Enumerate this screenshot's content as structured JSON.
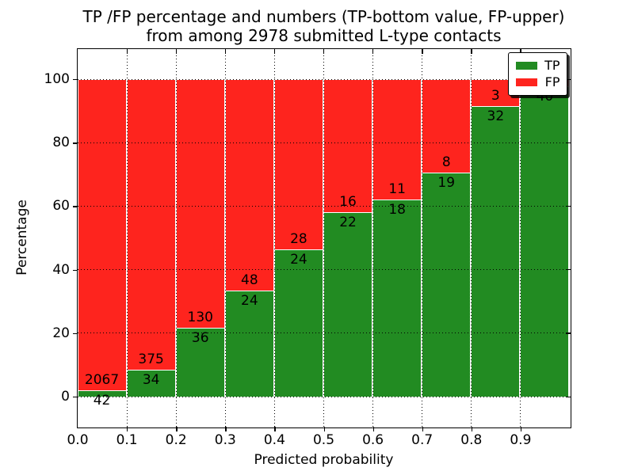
{
  "title": {
    "line1": "TP /FP percentage and numbers (TP-bottom value, FP-upper)",
    "line2": "from among 2978 submitted L-type contacts"
  },
  "axes": {
    "xlabel": "Predicted probability",
    "ylabel": "Percentage",
    "xtick_labels": [
      "0.0",
      "0.1",
      "0.2",
      "0.3",
      "0.4",
      "0.5",
      "0.6",
      "0.7",
      "0.8",
      "0.9"
    ],
    "ytick_labels": [
      "0",
      "20",
      "40",
      "60",
      "80",
      "100"
    ],
    "ytick_values": [
      0,
      20,
      40,
      60,
      80,
      100
    ]
  },
  "legend": {
    "position": "upper right",
    "entries": [
      {
        "label": "TP",
        "color": "#228b22"
      },
      {
        "label": "FP",
        "color": "#fe241e"
      }
    ]
  },
  "colors": {
    "tp": "#228b22",
    "fp": "#fe241e",
    "grid": "#000000",
    "background": "#ffffff"
  },
  "chart_data": {
    "type": "bar",
    "stacked": true,
    "normalized": "each bin scaled to 100%, segment heights are percent of bin total",
    "title": "TP /FP percentage and numbers (TP-bottom value, FP-upper) from among 2978 submitted L-type contacts",
    "xlabel": "Predicted probability",
    "ylabel": "Percentage",
    "total_contacts": 2978,
    "bins": [
      "0.0-0.1",
      "0.1-0.2",
      "0.2-0.3",
      "0.3-0.4",
      "0.4-0.5",
      "0.5-0.6",
      "0.6-0.7",
      "0.7-0.8",
      "0.8-0.9",
      "0.9-1.0"
    ],
    "series": [
      {
        "name": "TP",
        "color": "#228b22",
        "counts": [
          42,
          34,
          36,
          24,
          24,
          22,
          18,
          19,
          32,
          40
        ]
      },
      {
        "name": "FP",
        "color": "#fe241e",
        "counts": [
          2067,
          375,
          130,
          48,
          28,
          16,
          11,
          8,
          3,
          1
        ]
      }
    ],
    "tp_percent_of_bin": [
      2.0,
      8.3,
      21.7,
      33.3,
      46.2,
      57.9,
      62.1,
      70.4,
      91.4,
      97.6
    ],
    "xlim": [
      0.0,
      1.0
    ],
    "ylim": [
      -9.5,
      109.5
    ],
    "grid": "dotted",
    "legend_position": "upper right",
    "label_placement": "TP count just below green segment top, FP count just above red segment bottom"
  }
}
